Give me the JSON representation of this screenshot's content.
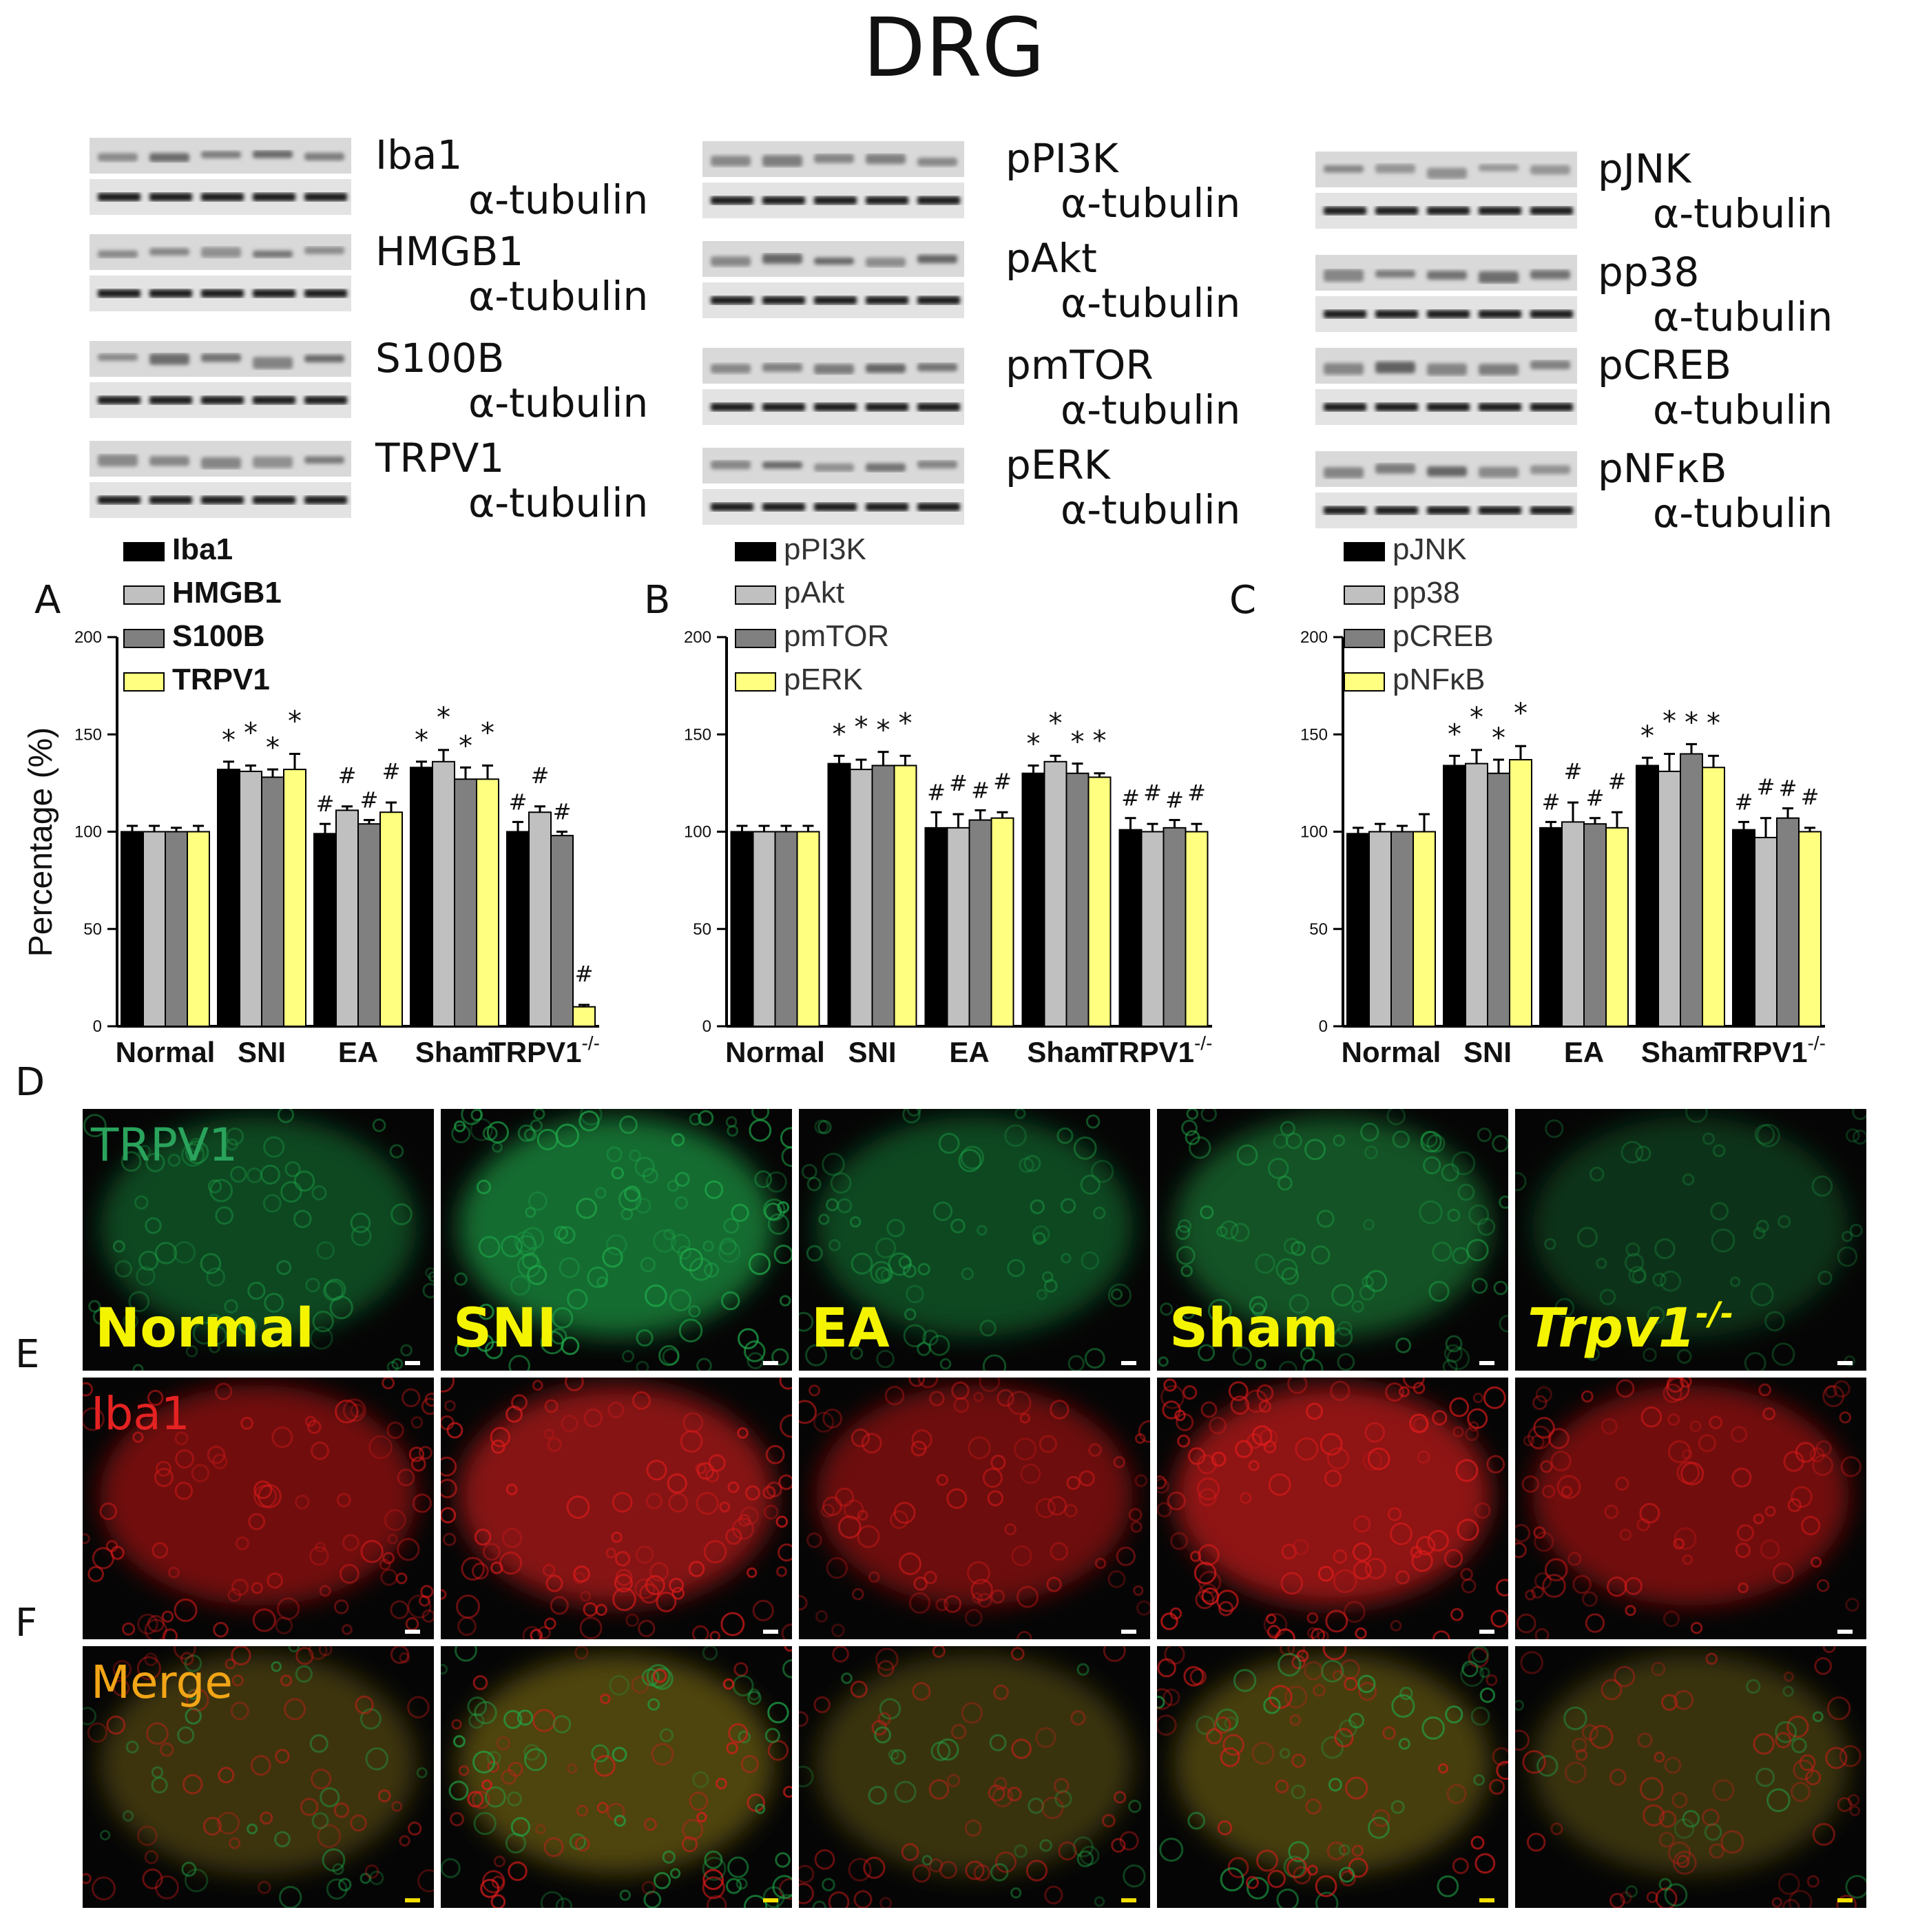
{
  "title": "DRG",
  "tubulin_label": "α-tubulin",
  "blot_groups": [
    {
      "name": "A",
      "targets": [
        "Iba1",
        "HMGB1",
        "S100B",
        "TRPV1"
      ]
    },
    {
      "name": "B",
      "targets": [
        "pPI3K",
        "pAkt",
        "pmTOR",
        "pERK"
      ]
    },
    {
      "name": "C",
      "targets": [
        "pJNK",
        "pp38",
        "pCREB",
        "pNFκB"
      ]
    }
  ],
  "colors": {
    "series": [
      "#000000",
      "#c0c0c0",
      "#808080",
      "#ffff80"
    ],
    "trpv1_channel": "#1fa84a",
    "iba1_channel": "#e01b1b",
    "merge_label": "#f2a516",
    "condition_label": "#f4f400",
    "blot_band": "#1a1a1a"
  },
  "chart_data": [
    {
      "type": "bar",
      "panel": "A",
      "ylabel": "Percentage (%)",
      "ylim": [
        0,
        200
      ],
      "yticks": [
        0,
        50,
        100,
        150,
        200
      ],
      "categories": [
        "Normal",
        "SNI",
        "EA",
        "Sham",
        "TRPV1"
      ],
      "category_superscript": "-/-",
      "grid": false,
      "legend_position": "top-left",
      "series": [
        {
          "name": "Iba1",
          "values": [
            100,
            132,
            99,
            133,
            100
          ],
          "errors": [
            3,
            4,
            5,
            3,
            5
          ]
        },
        {
          "name": "HMGB1",
          "values": [
            100,
            131,
            111,
            136,
            110
          ],
          "errors": [
            3,
            3,
            2,
            6,
            3
          ]
        },
        {
          "name": "S100B",
          "values": [
            100,
            128,
            104,
            127,
            98
          ],
          "errors": [
            2,
            4,
            2,
            6,
            2
          ]
        },
        {
          "name": "TRPV1",
          "values": [
            100,
            132,
            110,
            127,
            10
          ],
          "errors": [
            3,
            8,
            5,
            7,
            1
          ]
        }
      ],
      "annotations": [
        [
          "",
          "",
          "",
          ""
        ],
        [
          "*",
          "*",
          "*",
          "*"
        ],
        [
          "#",
          "#",
          "#",
          "#"
        ],
        [
          "*",
          "*",
          "*",
          "*"
        ],
        [
          "#",
          "#",
          "#",
          "#"
        ]
      ]
    },
    {
      "type": "bar",
      "panel": "B",
      "ylim": [
        0,
        200
      ],
      "yticks": [
        0,
        50,
        100,
        150,
        200
      ],
      "categories": [
        "Normal",
        "SNI",
        "EA",
        "Sham",
        "TRPV1"
      ],
      "category_superscript": "-/-",
      "grid": false,
      "legend_position": "top-left",
      "series": [
        {
          "name": "pPI3K",
          "values": [
            100,
            135,
            102,
            130,
            101
          ],
          "errors": [
            3,
            4,
            8,
            4,
            6
          ]
        },
        {
          "name": "pAkt",
          "values": [
            100,
            132,
            102,
            136,
            100
          ],
          "errors": [
            3,
            5,
            7,
            3,
            4
          ]
        },
        {
          "name": "pmTOR",
          "values": [
            100,
            134,
            106,
            130,
            102
          ],
          "errors": [
            3,
            7,
            5,
            5,
            4
          ]
        },
        {
          "name": "pERK",
          "values": [
            100,
            134,
            107,
            128,
            100
          ],
          "errors": [
            3,
            5,
            3,
            2,
            4
          ]
        }
      ],
      "annotations": [
        [
          "",
          "",
          "",
          ""
        ],
        [
          "*",
          "*",
          "*",
          "*"
        ],
        [
          "#",
          "#",
          "#",
          "#"
        ],
        [
          "*",
          "*",
          "*",
          "*"
        ],
        [
          "#",
          "#",
          "#",
          "#"
        ]
      ]
    },
    {
      "type": "bar",
      "panel": "C",
      "ylim": [
        0,
        200
      ],
      "yticks": [
        0,
        50,
        100,
        150,
        200
      ],
      "categories": [
        "Normal",
        "SNI",
        "EA",
        "Sham",
        "TRPV1"
      ],
      "category_superscript": "-/-",
      "grid": false,
      "legend_position": "top-left",
      "series": [
        {
          "name": "pJNK",
          "values": [
            99,
            134,
            102,
            134,
            101
          ],
          "errors": [
            3,
            5,
            3,
            4,
            4
          ]
        },
        {
          "name": "pp38",
          "values": [
            100,
            135,
            105,
            131,
            97
          ],
          "errors": [
            4,
            7,
            10,
            9,
            10
          ]
        },
        {
          "name": "pCREB",
          "values": [
            100,
            130,
            104,
            140,
            107
          ],
          "errors": [
            3,
            7,
            3,
            5,
            5
          ]
        },
        {
          "name": "pNFκB",
          "values": [
            100,
            137,
            102,
            133,
            100
          ],
          "errors": [
            9,
            7,
            8,
            6,
            2
          ]
        }
      ],
      "annotations": [
        [
          "",
          "",
          "",
          ""
        ],
        [
          "*",
          "*",
          "*",
          "*"
        ],
        [
          "#",
          "#",
          "#",
          "#"
        ],
        [
          "*",
          "*",
          "*",
          "*"
        ],
        [
          "#",
          "#",
          "#",
          "#"
        ]
      ]
    }
  ],
  "panel_letters": [
    "A",
    "B",
    "C",
    "D",
    "E",
    "F"
  ],
  "micrographs": {
    "channels": [
      "TRPV1",
      "Iba1",
      "Merge"
    ],
    "conditions": [
      "Normal",
      "SNI",
      "EA",
      "Sham",
      "Trpv1"
    ],
    "condition_superscript": "-/-",
    "brightness": {
      "TRPV1": [
        0.35,
        0.85,
        0.35,
        0.5,
        0.08
      ],
      "Iba1": [
        0.55,
        0.75,
        0.5,
        0.85,
        0.55
      ],
      "Merge": [
        0.5,
        0.85,
        0.45,
        0.7,
        0.45
      ]
    }
  }
}
